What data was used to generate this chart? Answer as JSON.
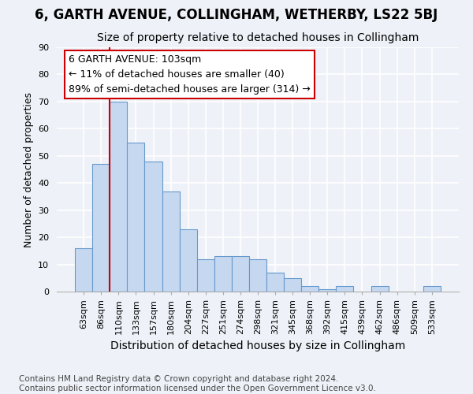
{
  "title": "6, GARTH AVENUE, COLLINGHAM, WETHERBY, LS22 5BJ",
  "subtitle": "Size of property relative to detached houses in Collingham",
  "xlabel": "Distribution of detached houses by size in Collingham",
  "ylabel": "Number of detached properties",
  "categories": [
    "63sqm",
    "86sqm",
    "110sqm",
    "133sqm",
    "157sqm",
    "180sqm",
    "204sqm",
    "227sqm",
    "251sqm",
    "274sqm",
    "298sqm",
    "321sqm",
    "345sqm",
    "368sqm",
    "392sqm",
    "415sqm",
    "439sqm",
    "462sqm",
    "486sqm",
    "509sqm",
    "533sqm"
  ],
  "values": [
    16,
    47,
    70,
    55,
    48,
    37,
    23,
    12,
    13,
    13,
    12,
    7,
    5,
    2,
    1,
    2,
    0,
    2,
    0,
    0,
    2
  ],
  "bar_color": "#c5d8f0",
  "bar_edge_color": "#6699cc",
  "background_color": "#eef2f8",
  "grid_color": "#ffffff",
  "property_line_color": "#cc0000",
  "annotation_line1": "6 GARTH AVENUE: 103sqm",
  "annotation_line2": "← 11% of detached houses are smaller (40)",
  "annotation_line3": "89% of semi-detached houses are larger (314) →",
  "annotation_box_color": "#ffffff",
  "annotation_box_edge_color": "#cc0000",
  "footer": "Contains HM Land Registry data © Crown copyright and database right 2024.\nContains public sector information licensed under the Open Government Licence v3.0.",
  "ylim": [
    0,
    90
  ],
  "yticks": [
    0,
    10,
    20,
    30,
    40,
    50,
    60,
    70,
    80,
    90
  ],
  "title_fontsize": 12,
  "subtitle_fontsize": 10,
  "xlabel_fontsize": 10,
  "ylabel_fontsize": 9,
  "tick_fontsize": 8,
  "annotation_fontsize": 9,
  "footer_fontsize": 7.5
}
